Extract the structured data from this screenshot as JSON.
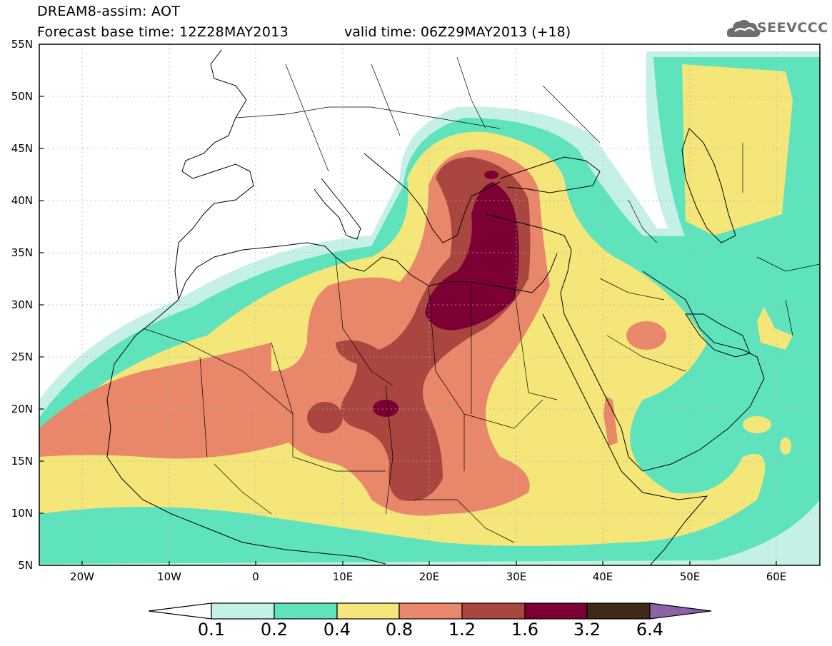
{
  "header": {
    "title_line1": "DREAM8-assim: AOT",
    "title_line2": "Forecast base time: 12Z28MAY2013",
    "valid_time": "valid time: 06Z29MAY2013 (+18)",
    "logo_text": "SEEVCCC",
    "logo_icon": "cloud-icon"
  },
  "map": {
    "lat_labels": [
      "55N",
      "50N",
      "45N",
      "40N",
      "35N",
      "30N",
      "25N",
      "20N",
      "15N",
      "10N",
      "5N"
    ],
    "lon_labels": [
      "20W",
      "10W",
      "0",
      "10E",
      "20E",
      "30E",
      "40E",
      "50E",
      "60E"
    ],
    "extent": {
      "lon_min": -25,
      "lon_max": 65,
      "lat_min": 5,
      "lat_max": 55
    },
    "grid": true
  },
  "colorbar": {
    "labels": [
      "0.1",
      "0.2",
      "0.4",
      "0.8",
      "1.2",
      "1.6",
      "3.2",
      "6.4"
    ],
    "colors": [
      "#ffffff",
      "#c5f0e8",
      "#5ee3bd",
      "#f5e67a",
      "#e8876a",
      "#a8463f",
      "#7c0033",
      "#3f2a1a",
      "#8a63a8"
    ]
  }
}
